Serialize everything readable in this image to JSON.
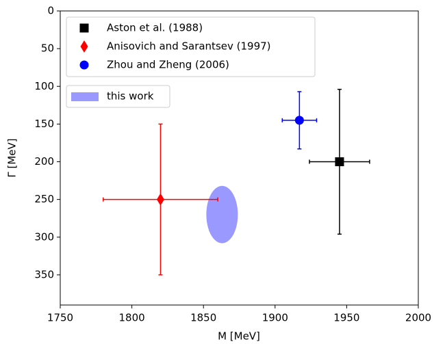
{
  "chart_data": {
    "type": "scatter",
    "xlabel": "M [MeV]",
    "ylabel": "Γ [MeV]",
    "xlim": [
      1750,
      2000
    ],
    "ylim": [
      390,
      0
    ],
    "xticks": [
      1750,
      1800,
      1850,
      1900,
      1950,
      2000
    ],
    "yticks": [
      0,
      50,
      100,
      150,
      200,
      250,
      300,
      350
    ],
    "legend": "upper left",
    "series": [
      {
        "name": "Aston et al. (1988)",
        "color": "#000000",
        "marker": "square",
        "x": [
          1945
        ],
        "values": [
          200
        ],
        "xerr": [
          21
        ],
        "yerr": [
          96
        ]
      },
      {
        "name": "Anisovich and Sarantsev (1997)",
        "color": "#ff0000",
        "marker": "diamond",
        "x": [
          1820
        ],
        "values": [
          250
        ],
        "xerr": [
          40
        ],
        "yerr": [
          100
        ]
      },
      {
        "name": "Zhou and Zheng (2006)",
        "color": "#0000ff",
        "marker": "circle",
        "x": [
          1917
        ],
        "values": [
          145
        ],
        "xerr": [
          12
        ],
        "yerr": [
          38
        ]
      }
    ],
    "region": {
      "name": "this work",
      "color": "#9999ff",
      "x": 1863,
      "y": 270,
      "width": 22,
      "height": 76
    }
  }
}
